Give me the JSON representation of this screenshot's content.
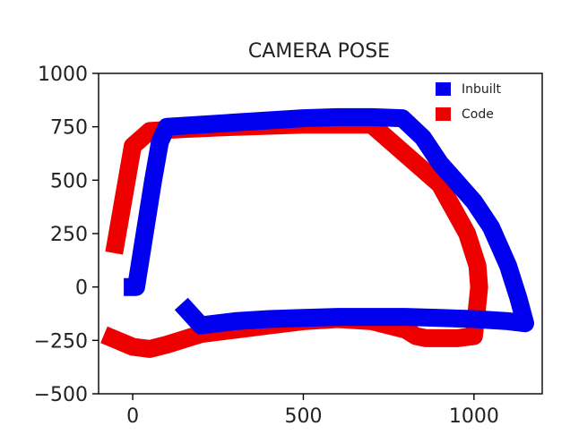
{
  "chart_data": {
    "type": "line",
    "title": "CAMERA POSE",
    "xlabel": "",
    "ylabel": "",
    "xlim": [
      -100,
      1200
    ],
    "ylim": [
      -500,
      1000
    ],
    "x_ticks": [
      0,
      500,
      1000
    ],
    "y_ticks": [
      1000,
      750,
      500,
      250,
      0,
      -250,
      -500
    ],
    "x_tick_labels": [
      "0",
      "500",
      "1000"
    ],
    "y_tick_labels": [
      "1000",
      "750",
      "500",
      "250",
      "0",
      "−250",
      "−500"
    ],
    "grid": false,
    "legend_position": "top-right",
    "series": [
      {
        "name": "Code",
        "color": "#ee0000",
        "x": [
          -60,
          0,
          50,
          100,
          200,
          300,
          400,
          500,
          600,
          700,
          800,
          830,
          860,
          900,
          950,
          1000,
          1010,
          1015,
          1010,
          980,
          900,
          700,
          500,
          300,
          150,
          50,
          0,
          -50
        ],
        "y": [
          -240,
          -280,
          -290,
          -270,
          -220,
          -200,
          -180,
          -160,
          -150,
          -160,
          -200,
          -230,
          -240,
          -240,
          -240,
          -230,
          -80,
          0,
          100,
          250,
          480,
          760,
          760,
          750,
          740,
          730,
          660,
          200
        ]
      },
      {
        "name": "Inbuilt",
        "color": "#0000ee",
        "x": [
          0,
          10,
          15,
          30,
          60,
          80,
          100,
          200,
          300,
          400,
          500,
          600,
          700,
          790,
          850,
          900,
          1000,
          1050,
          1100,
          1130,
          1150,
          1100,
          1000,
          900,
          800,
          700,
          600,
          500,
          400,
          300,
          200,
          160
        ],
        "y": [
          0,
          0,
          50,
          200,
          500,
          680,
          750,
          760,
          770,
          780,
          790,
          795,
          795,
          790,
          700,
          580,
          400,
          280,
          100,
          -50,
          -170,
          -160,
          -150,
          -145,
          -140,
          -140,
          -140,
          -145,
          -150,
          -160,
          -180,
          -110
        ]
      }
    ]
  }
}
